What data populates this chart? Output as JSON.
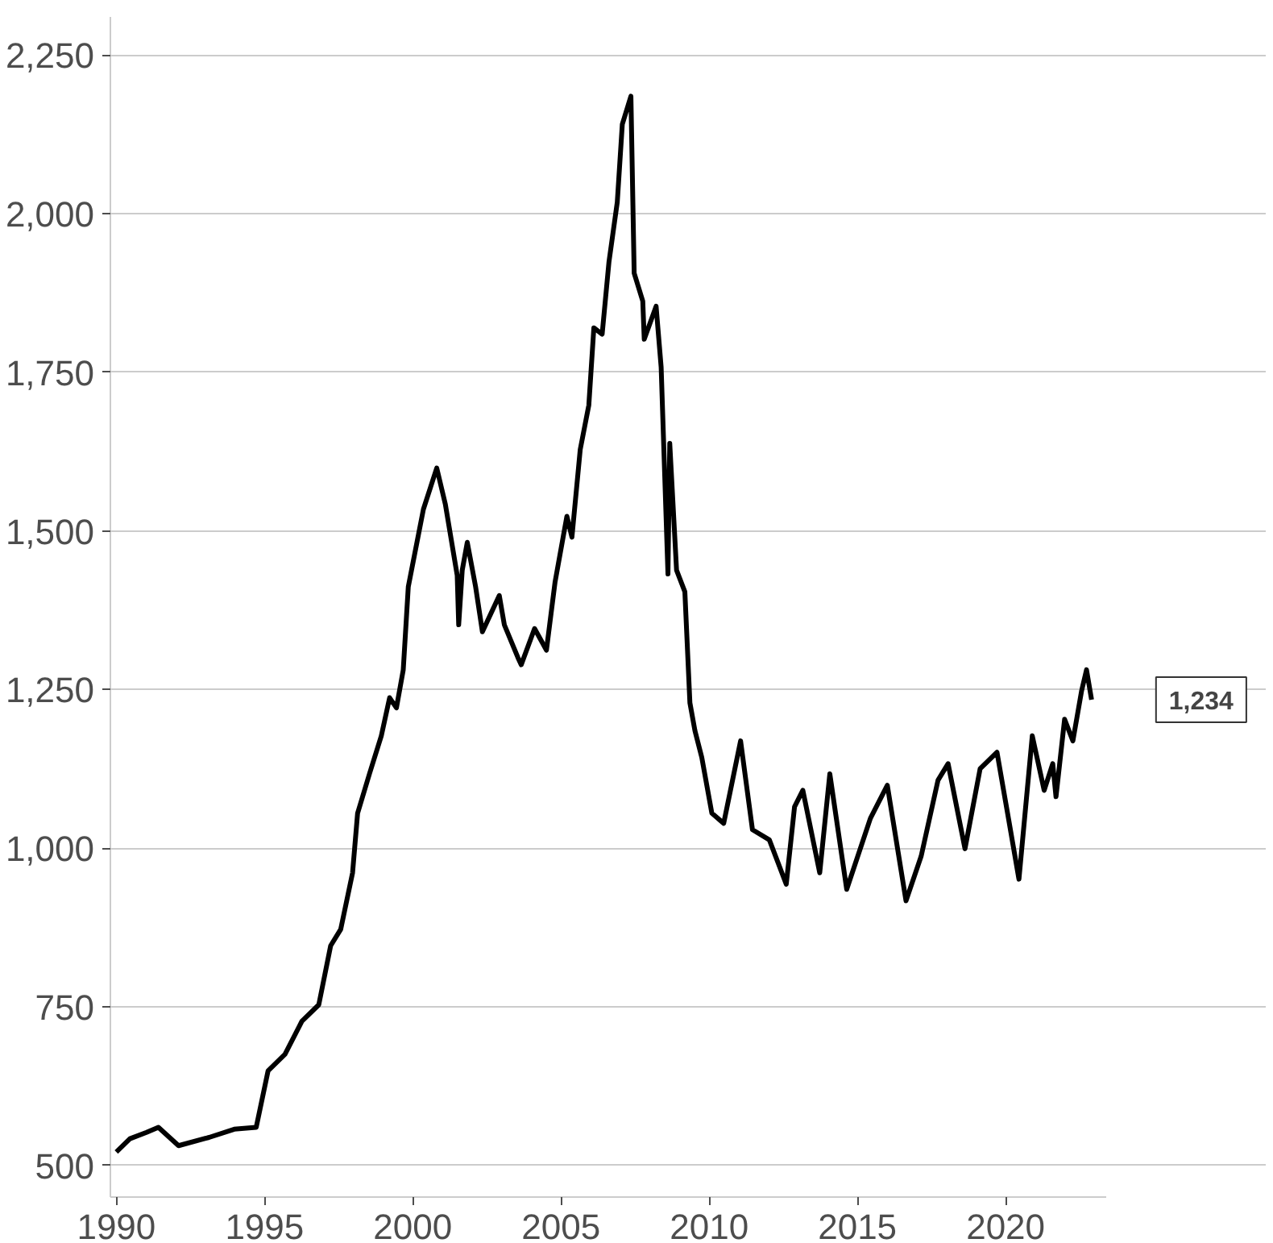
{
  "chart_data": {
    "type": "line",
    "x": [
      1990.0,
      1990.46,
      1991.02,
      1991.42,
      1992.1,
      1993.13,
      1993.98,
      1994.72,
      1995.12,
      1995.69,
      1996.26,
      1996.83,
      1997.23,
      1997.57,
      1997.97,
      1998.14,
      1998.54,
      1998.94,
      1999.22,
      1999.45,
      1999.68,
      1999.85,
      2000.36,
      2000.81,
      2001.1,
      2001.5,
      2001.55,
      2001.67,
      2001.84,
      2002.12,
      2002.35,
      2002.92,
      2003.09,
      2003.55,
      2003.66,
      2004.11,
      2004.51,
      2004.8,
      2005.2,
      2005.37,
      2005.65,
      2005.94,
      2006.11,
      2006.39,
      2006.62,
      2006.9,
      2007.07,
      2007.36,
      2007.47,
      2007.76,
      2007.81,
      2008.21,
      2008.38,
      2008.61,
      2008.67,
      2008.9,
      2009.18,
      2009.35,
      2009.52,
      2009.75,
      2010.09,
      2010.49,
      2011.06,
      2011.46,
      2012.03,
      2012.6,
      2012.88,
      2013.16,
      2013.73,
      2014.07,
      2014.64,
      2015.44,
      2016.01,
      2016.64,
      2017.15,
      2017.72,
      2018.06,
      2018.63,
      2019.14,
      2019.71,
      2020.0,
      2020.45,
      2020.9,
      2021.3,
      2021.59,
      2021.7,
      2021.99,
      2022.27,
      2022.56,
      2022.73,
      2022.9
    ],
    "series": [
      {
        "color": "#000000",
        "values": [
          521,
          542,
          552,
          560,
          531,
          544,
          557,
          560,
          649,
          675,
          727,
          753,
          846,
          872,
          961,
          1055,
          1117,
          1177,
          1237,
          1221,
          1281,
          1412,
          1534,
          1599,
          1542,
          1430,
          1352,
          1438,
          1482,
          1412,
          1341,
          1398,
          1352,
          1300,
          1289,
          1346,
          1312,
          1419,
          1523,
          1490,
          1628,
          1698,
          1820,
          1810,
          1924,
          2018,
          2141,
          2185,
          1906,
          1862,
          1802,
          1854,
          1758,
          1432,
          1638,
          1438,
          1404,
          1229,
          1185,
          1143,
          1055,
          1039,
          1169,
          1029,
          1013,
          943,
          1065,
          1091,
          961,
          1117,
          935,
          1047,
          1099,
          917,
          987,
          1107,
          1133,
          999,
          1125,
          1151,
          1073,
          951,
          1177,
          1091,
          1133,
          1081,
          1203,
          1169,
          1247,
          1281,
          1234
        ]
      }
    ],
    "xlim": [
      1989.8,
      2023.4
    ],
    "ylim": [
      450,
      2310
    ],
    "xticks": [
      1990,
      1995,
      2000,
      2005,
      2010,
      2015,
      2020
    ],
    "yticks": [
      {
        "value": 500,
        "label": "500"
      },
      {
        "value": 750,
        "label": "750"
      },
      {
        "value": 1000,
        "label": "1,000"
      },
      {
        "value": 1250,
        "label": "1,250"
      },
      {
        "value": 1500,
        "label": "1,500"
      },
      {
        "value": 1750,
        "label": "1,750"
      },
      {
        "value": 2000,
        "label": "2,000"
      },
      {
        "value": 2250,
        "label": "2,250"
      }
    ],
    "grid": "y",
    "annotations": [
      {
        "text": "1,234",
        "x": 2022.9,
        "y": 1234
      }
    ]
  }
}
